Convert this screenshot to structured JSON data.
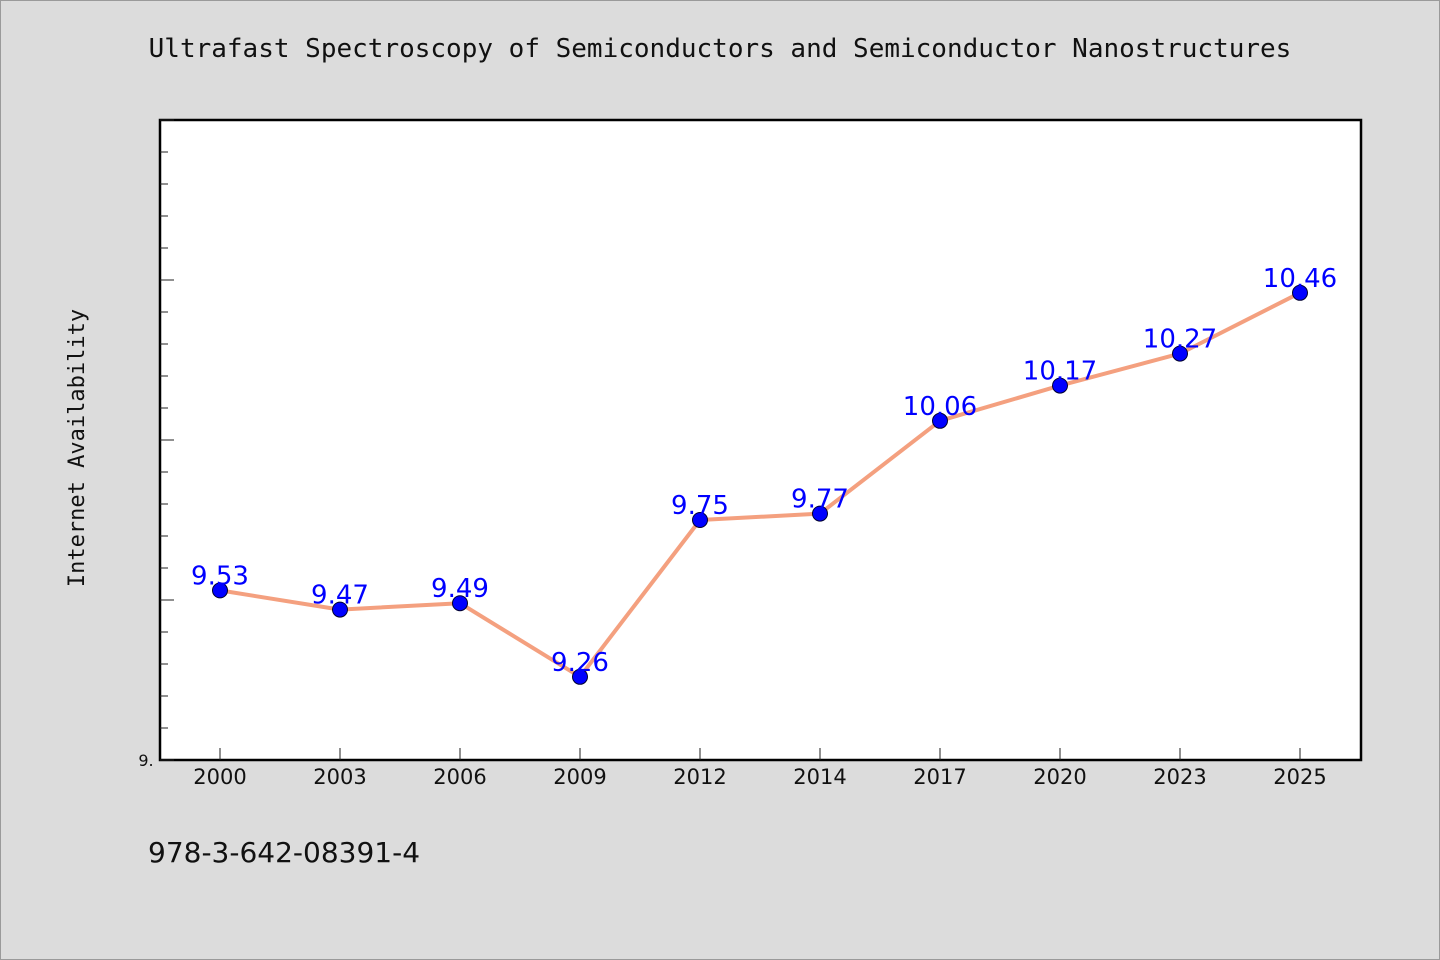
{
  "title": "Ultrafast Spectroscopy of Semiconductors and Semiconductor Nanostructures",
  "footer_text": "978-3-642-08391-4",
  "colors": {
    "background": "#dcdcdc",
    "plot_bg": "#ffffff",
    "line": "#f4a07f",
    "marker": "#0000ff",
    "label": "#0000ff"
  },
  "chart_data": {
    "type": "line",
    "categories": [
      "2000",
      "2003",
      "2006",
      "2009",
      "2012",
      "2014",
      "2017",
      "2020",
      "2023",
      "2025"
    ],
    "values": [
      9.53,
      9.47,
      9.49,
      9.26,
      9.75,
      9.77,
      10.06,
      10.17,
      10.27,
      10.46
    ],
    "data_labels": [
      "9.53",
      "9.47",
      "9.49",
      "9.26",
      "9.75",
      "9.77",
      "10.06",
      "10.17",
      "10.27",
      "10.46"
    ],
    "ylabel": "Internet Availability",
    "xlabel": "",
    "ytick_label": "9.",
    "ylim": [
      9.0,
      11.0
    ],
    "grid": false,
    "legend": "none"
  }
}
